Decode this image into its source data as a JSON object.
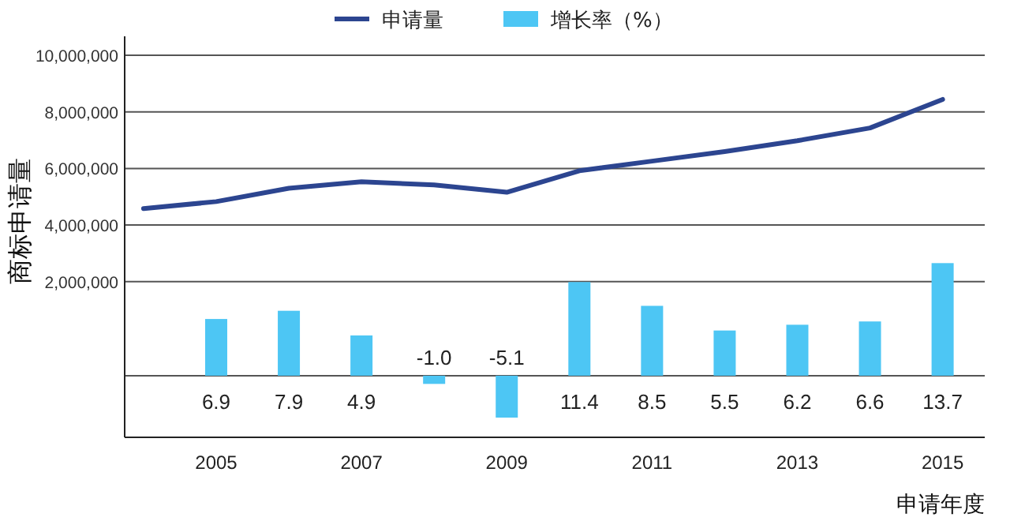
{
  "chart_data": {
    "type": "line",
    "xlabel": "申请年度",
    "ylabel": "商标申请量",
    "legend": "top",
    "grid": "y",
    "xlim": [
      2003.74,
      2015.58
    ],
    "xticks": [
      2005,
      2007,
      2009,
      2011,
      2013,
      2015
    ],
    "ylim": [
      -3500000,
      10670000
    ],
    "yticks": [
      {
        "value": 2000000,
        "label": "2,000,000"
      },
      {
        "value": 4000000,
        "label": "4,000,000"
      },
      {
        "value": 6000000,
        "label": "6,000,000"
      },
      {
        "value": 8000000,
        "label": "8,000,000"
      },
      {
        "value": 10000000,
        "label": "10,000,000"
      }
    ],
    "y2lim": [
      -7.5,
      41.3
    ],
    "ref_lines": [
      {
        "axis": "y2",
        "value": 0,
        "color": "#555555"
      }
    ],
    "series": [
      {
        "name": "申请量",
        "color": "#2c4590",
        "x": [
          2004,
          2005,
          2006,
          2007,
          2008,
          2009,
          2010,
          2011,
          2012,
          2013,
          2014,
          2015
        ],
        "values": [
          4580000,
          4830000,
          5300000,
          5530000,
          5420000,
          5160000,
          5920000,
          6260000,
          6600000,
          6980000,
          7430000,
          8440000
        ]
      },
      {
        "name": "增长率（%）",
        "type": "bar",
        "axis": "y2",
        "color": "#4dc6f4",
        "x": [
          2005,
          2006,
          2007,
          2008,
          2009,
          2010,
          2011,
          2012,
          2013,
          2014,
          2015
        ],
        "values": [
          6.9,
          7.9,
          4.9,
          -1.0,
          -5.1,
          11.4,
          8.5,
          5.5,
          6.2,
          6.6,
          13.7
        ],
        "value_labels": [
          "6.9",
          "7.9",
          "4.9",
          "-1.0",
          "-5.1",
          "11.4",
          "8.5",
          "5.5",
          "6.2",
          "6.6",
          "13.7"
        ]
      }
    ]
  }
}
